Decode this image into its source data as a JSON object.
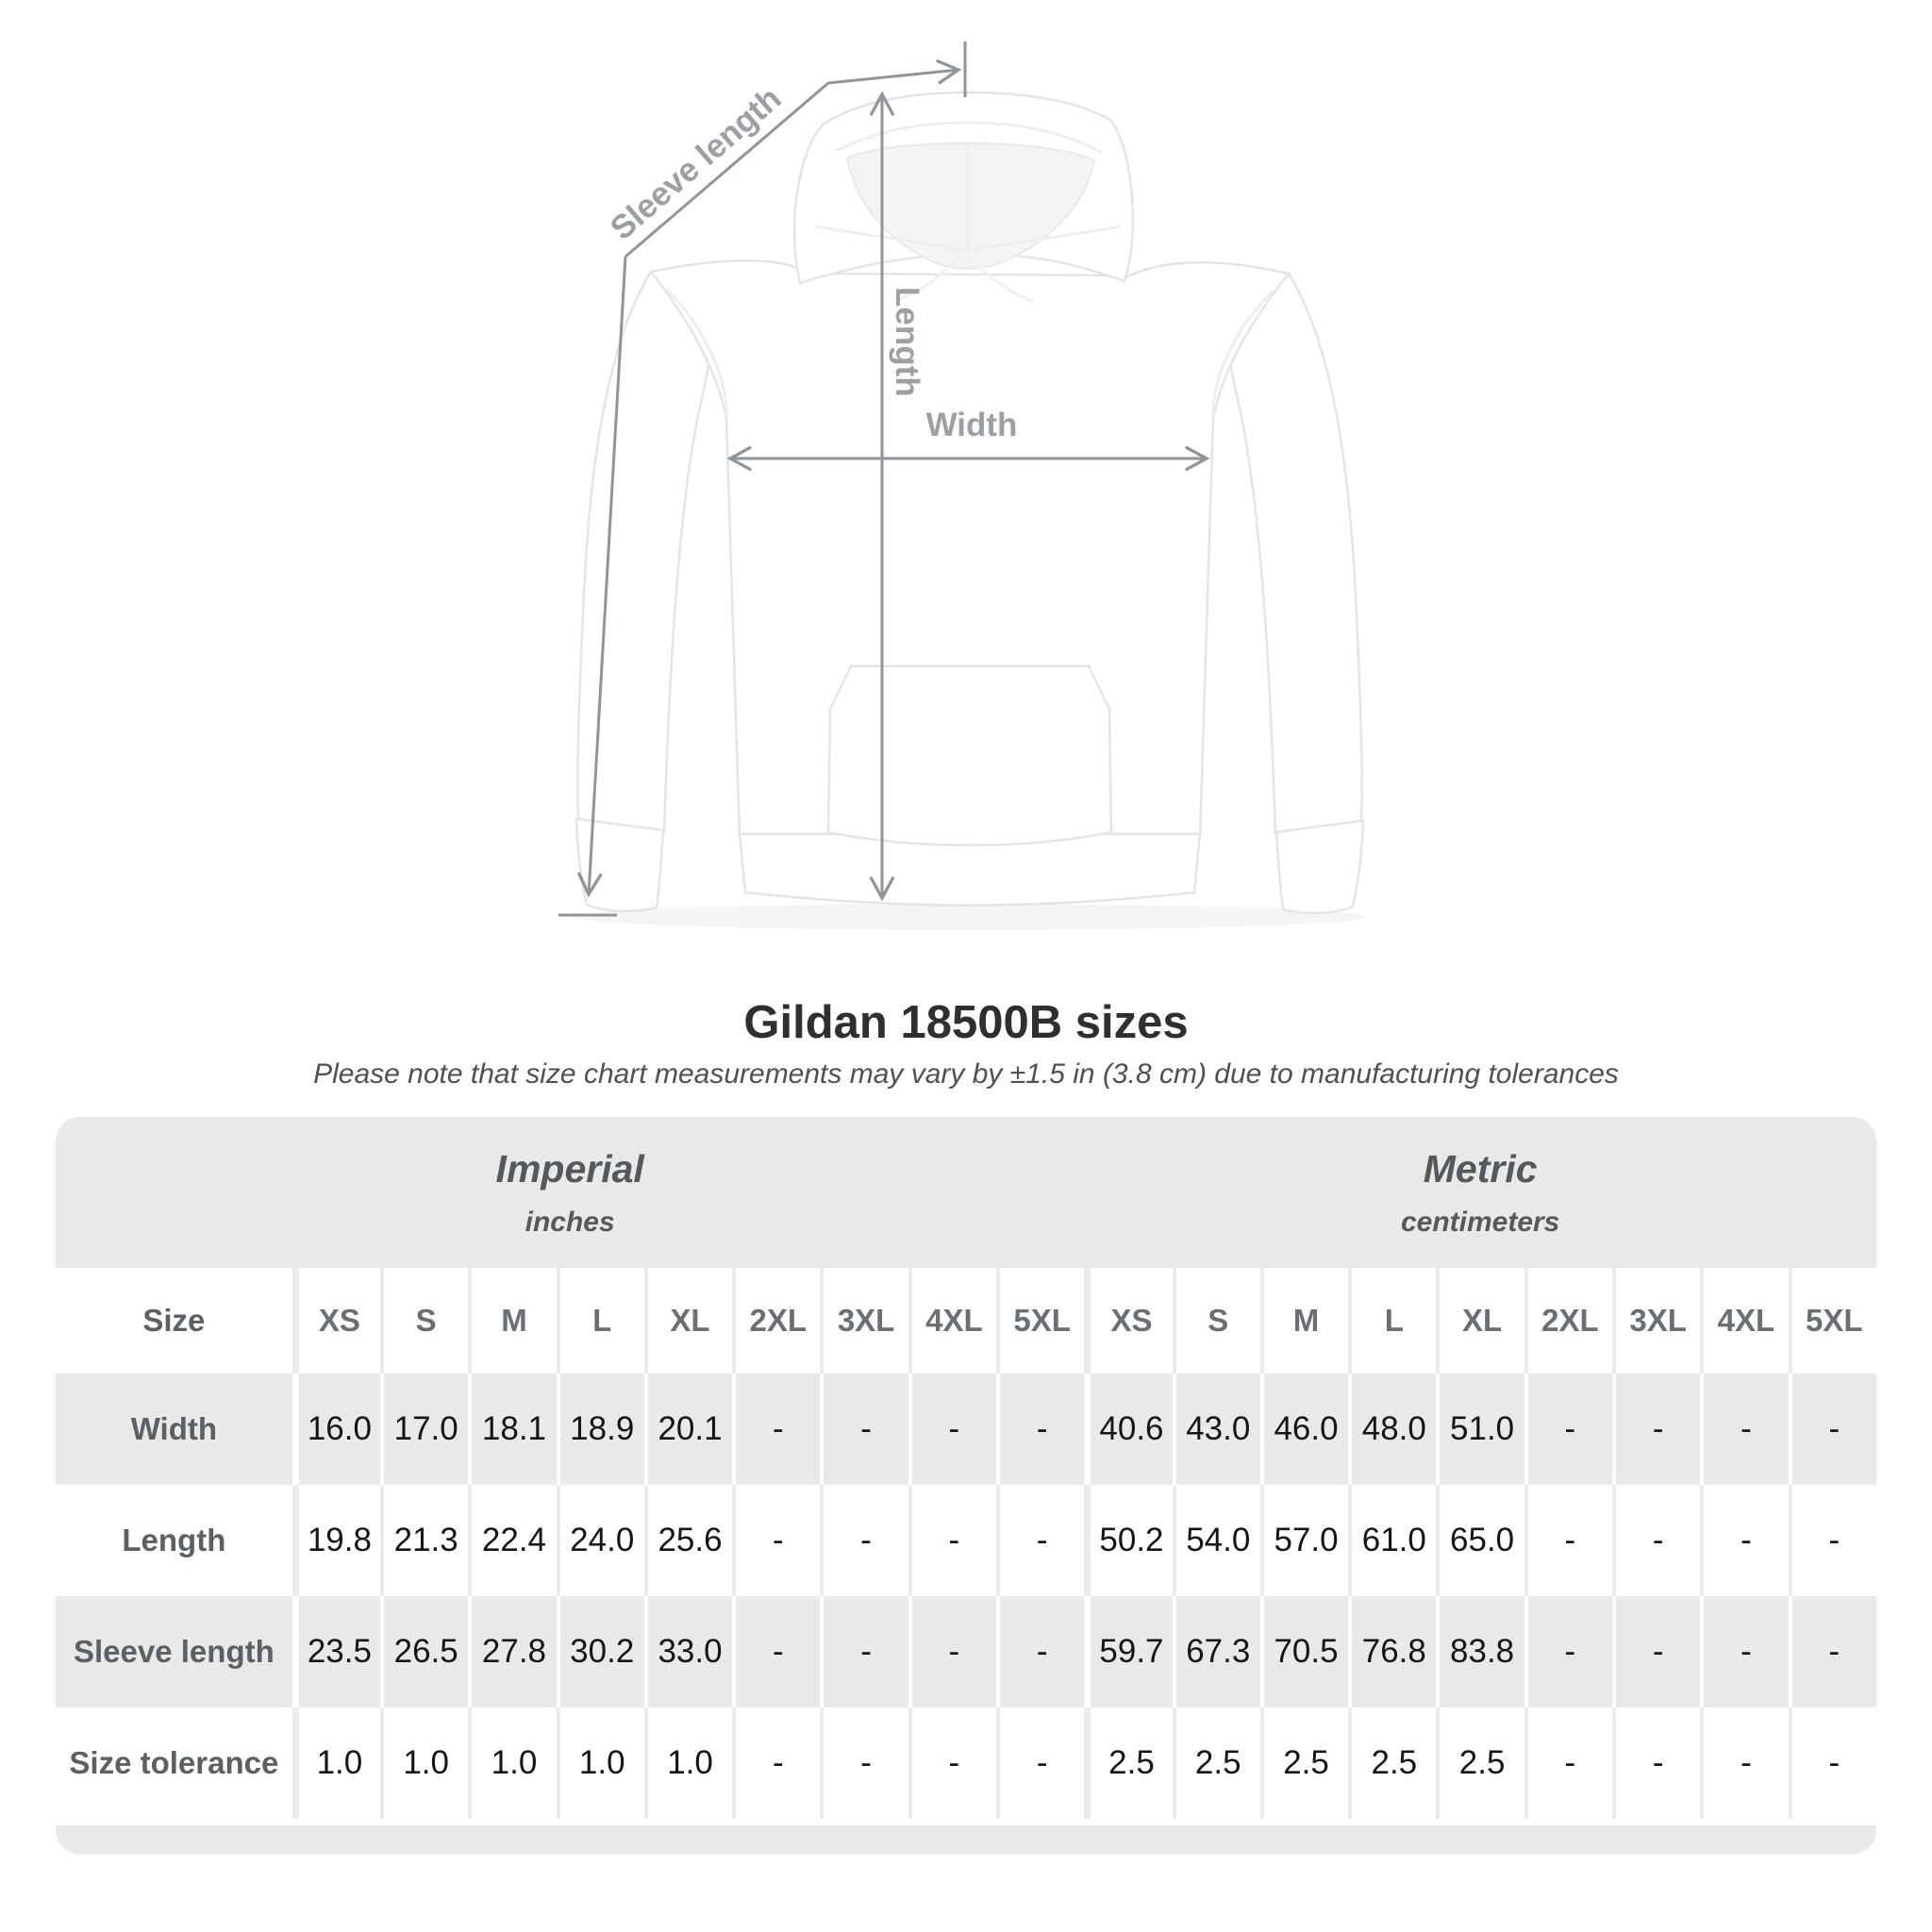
{
  "diagram": {
    "sleeve_length_label": "Sleeve length",
    "length_label": "Length",
    "width_label": "Width"
  },
  "title": "Gildan 18500B sizes",
  "subtitle": "Please note that size chart measurements may vary by ±1.5 in (3.8 cm) due to manufacturing tolerances",
  "table": {
    "size_header": "Size",
    "unit_groups": [
      {
        "name": "Imperial",
        "unit": "inches"
      },
      {
        "name": "Metric",
        "unit": "centimeters"
      }
    ],
    "sizes": [
      "XS",
      "S",
      "M",
      "L",
      "XL",
      "2XL",
      "3XL",
      "4XL",
      "5XL"
    ],
    "rows": [
      {
        "label": "Width",
        "imperial": [
          "16.0",
          "17.0",
          "18.1",
          "18.9",
          "20.1",
          "-",
          "-",
          "-",
          "-"
        ],
        "metric": [
          "40.6",
          "43.0",
          "46.0",
          "48.0",
          "51.0",
          "-",
          "-",
          "-",
          "-"
        ]
      },
      {
        "label": "Length",
        "imperial": [
          "19.8",
          "21.3",
          "22.4",
          "24.0",
          "25.6",
          "-",
          "-",
          "-",
          "-"
        ],
        "metric": [
          "50.2",
          "54.0",
          "57.0",
          "61.0",
          "65.0",
          "-",
          "-",
          "-",
          "-"
        ]
      },
      {
        "label": "Sleeve length",
        "imperial": [
          "23.5",
          "26.5",
          "27.8",
          "30.2",
          "33.0",
          "-",
          "-",
          "-",
          "-"
        ],
        "metric": [
          "59.7",
          "67.3",
          "70.5",
          "76.8",
          "83.8",
          "-",
          "-",
          "-",
          "-"
        ]
      },
      {
        "label": "Size tolerance",
        "imperial": [
          "1.0",
          "1.0",
          "1.0",
          "1.0",
          "1.0",
          "-",
          "-",
          "-",
          "-"
        ],
        "metric": [
          "2.5",
          "2.5",
          "2.5",
          "2.5",
          "2.5",
          "-",
          "-",
          "-",
          "-"
        ]
      }
    ]
  },
  "colors": {
    "table_band": "#e9e9e9",
    "value_text": "#151515",
    "label_text": "#5a6165",
    "diagram_line": "#8f969b",
    "diagram_label": "#9aa0a4"
  }
}
